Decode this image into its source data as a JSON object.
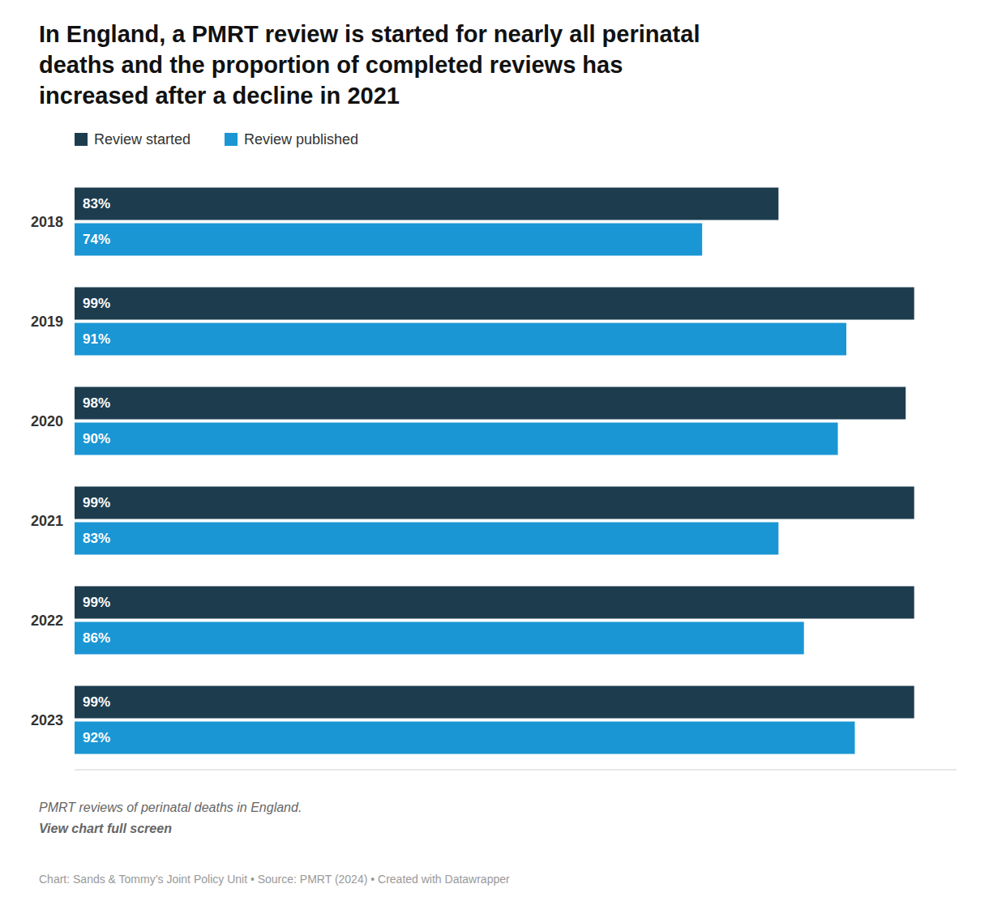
{
  "chart_data": {
    "type": "bar",
    "orientation": "horizontal",
    "title": "In England, a PMRT review is started for nearly all perinatal\ndeaths and the proportion of completed reviews has\nincreased after a decline in 2021",
    "categories": [
      "2018",
      "2019",
      "2020",
      "2021",
      "2022",
      "2023"
    ],
    "series": [
      {
        "name": "Review started",
        "color": "#1d3d4f",
        "values": [
          83,
          99,
          98,
          99,
          99,
          99
        ],
        "value_labels": [
          "83%",
          "99%",
          "98%",
          "99%",
          "99%",
          "99%"
        ]
      },
      {
        "name": "Review published",
        "color": "#1a96d4",
        "values": [
          74,
          91,
          90,
          83,
          86,
          92
        ],
        "value_labels": [
          "74%",
          "91%",
          "90%",
          "83%",
          "86%",
          "92%"
        ]
      }
    ],
    "xlim": [
      0,
      104
    ],
    "data_labels": true,
    "tick_labels": "y",
    "legend": "upper left",
    "grid": false,
    "annotations": [
      "PMRT reviews of perinatal deaths in England.",
      "View chart full screen",
      "Chart: Sands & Tommy’s Joint Policy Unit • Source: PMRT (2024) • Created with Datawrapper"
    ]
  }
}
